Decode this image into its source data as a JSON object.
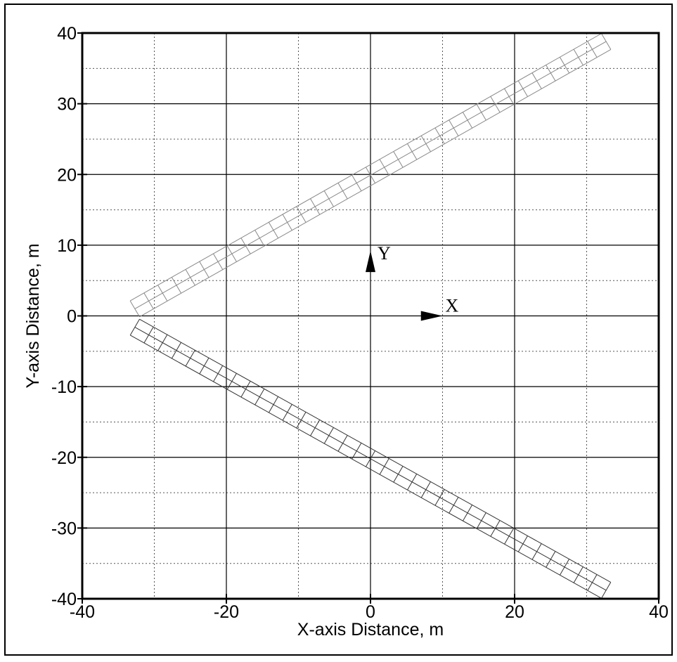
{
  "chart_data": {
    "type": "diagram-plot",
    "xlabel": "X-axis Distance, m",
    "ylabel": "Y-axis Distance, m",
    "xlim": [
      -40,
      40
    ],
    "ylim": [
      -40,
      40
    ],
    "x_major_ticks": [
      -40,
      -20,
      0,
      20,
      40
    ],
    "x_minor_ticks": [
      -30,
      -10,
      10,
      30
    ],
    "y_major_ticks": [
      -40,
      -30,
      -20,
      -10,
      0,
      10,
      20,
      30,
      40
    ],
    "y_minor_ticks": [
      -35,
      -25,
      -15,
      -5,
      5,
      15,
      25,
      35
    ],
    "x_tick_labels": [
      "-40",
      "-20",
      "0",
      "20",
      "40"
    ],
    "y_tick_labels": [
      "-40",
      "-30",
      "-20",
      "-10",
      "0",
      "10",
      "20",
      "30",
      "40"
    ],
    "grid": true,
    "meshed_strips": [
      {
        "id": "upper-strip",
        "centerline_start": [
          -32.7,
          1.0
        ],
        "centerline_end": [
          32.7,
          38.8
        ],
        "width_m": 2.6,
        "segments": 34,
        "line_color": "#888888"
      },
      {
        "id": "lower-strip",
        "centerline_start": [
          -32.7,
          -1.6
        ],
        "centerline_end": [
          32.7,
          -38.8
        ],
        "width_m": 2.6,
        "segments": 34,
        "line_color": "#333333"
      }
    ],
    "axis_arrows": [
      {
        "label": "Y",
        "from": [
          0,
          6.2
        ],
        "to": [
          0,
          9.2
        ]
      },
      {
        "label": "X",
        "from": [
          7,
          0
        ],
        "to": [
          10,
          0
        ]
      }
    ]
  }
}
